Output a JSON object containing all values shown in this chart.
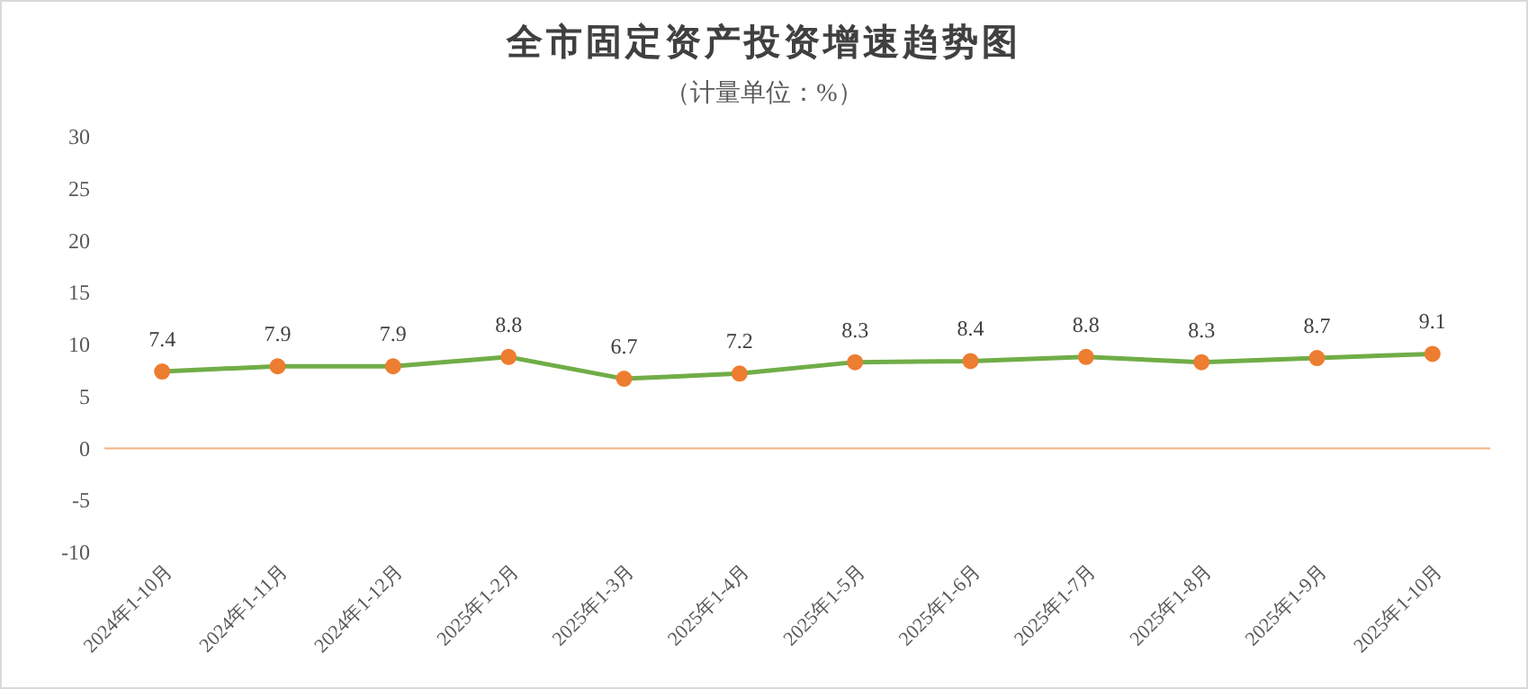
{
  "chart_data": {
    "type": "line",
    "title": "全市固定资产投资增速趋势图",
    "subtitle": "（计量单位：%）",
    "categories": [
      "2024年1-10月",
      "2024年1-11月",
      "2024年1-12月",
      "2025年1-2月",
      "2025年1-3月",
      "2025年1-4月",
      "2025年1-5月",
      "2025年1-6月",
      "2025年1-7月",
      "2025年1-8月",
      "2025年1-9月",
      "2025年1-10月"
    ],
    "series": [
      {
        "color": "#70ad47",
        "values": [
          7.4,
          7.9,
          7.9,
          8.8,
          6.7,
          7.2,
          8.3,
          8.4,
          8.8,
          8.3,
          8.7,
          9.1
        ]
      }
    ],
    "ylim": [
      -10,
      30
    ],
    "yticks": [
      -10,
      -5,
      0,
      5,
      10,
      15,
      20,
      25,
      30
    ],
    "ref_lines": [
      {
        "axis": "y",
        "value": 0,
        "color": "#f4b183"
      }
    ],
    "marker": "circle",
    "data_labels": true,
    "grid": false
  }
}
